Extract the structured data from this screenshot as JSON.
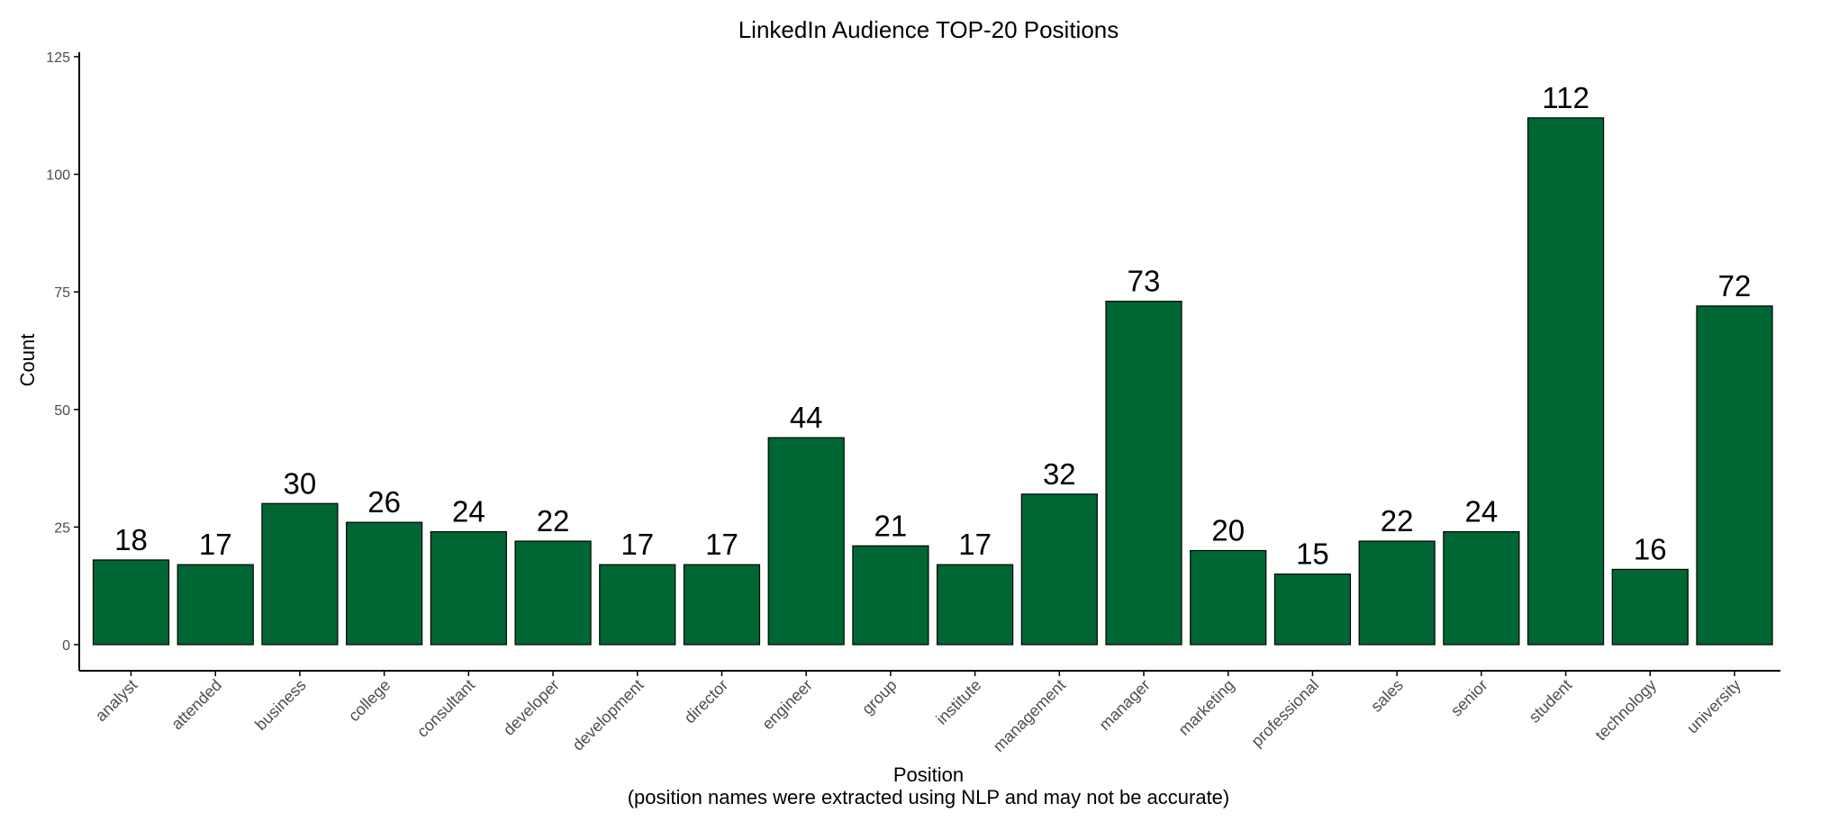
{
  "chart_data": {
    "type": "bar",
    "title": "LinkedIn Audience TOP-20 Positions",
    "xlabel": "Position",
    "xlabel_sub": "(position names were extracted using NLP and may not be accurate)",
    "ylabel": "Count",
    "ylim": [
      0,
      125
    ],
    "yticks": [
      0,
      25,
      50,
      75,
      100,
      125
    ],
    "grid": false,
    "legend": "none",
    "bar_color": "#006633",
    "bar_border_color": "#000000",
    "categories": [
      "analyst",
      "attended",
      "business",
      "college",
      "consultant",
      "developer",
      "development",
      "director",
      "engineer",
      "group",
      "institute",
      "management",
      "manager",
      "marketing",
      "professional",
      "sales",
      "senior",
      "student",
      "technology",
      "university"
    ],
    "values": [
      18,
      17,
      30,
      26,
      24,
      22,
      17,
      17,
      44,
      21,
      17,
      32,
      73,
      20,
      15,
      22,
      24,
      112,
      16,
      72
    ]
  }
}
